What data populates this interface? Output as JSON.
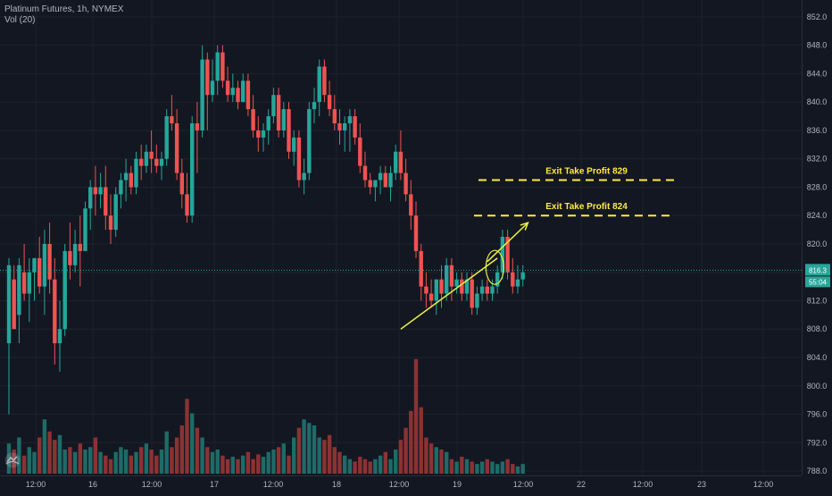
{
  "legend": {
    "symbol": "Platinum Futures, 1h, NYMEX",
    "volume": "Vol (20)"
  },
  "colors": {
    "background": "#131722",
    "grid": "#1e222d",
    "up": "#26a69a",
    "down": "#ef5350",
    "vol_up": "#1e6b67",
    "vol_down": "#8c3233",
    "annotation": "#ffeb3b",
    "arrow": "#eaf13e",
    "axis_text": "#b2b5be",
    "price_line": "#26a69a"
  },
  "chart_data": {
    "type": "candlestick",
    "title": "Platinum Futures, 1h, NYMEX",
    "ylim": [
      786,
      854
    ],
    "y_ticks": [
      "852.0",
      "848.0",
      "844.0",
      "840.0",
      "836.0",
      "832.0",
      "828.0",
      "824.0",
      "820.0",
      "816.0",
      "812.0",
      "808.0",
      "804.0",
      "800.0",
      "796.0",
      "792.0",
      "788.0"
    ],
    "x_ticks": [
      "12:00",
      "16",
      "12:00",
      "17",
      "12:00",
      "18",
      "12:00",
      "19",
      "12:00",
      "22",
      "12:00",
      "23",
      "12:00"
    ],
    "current_price_labels": [
      "816.3",
      "55:04"
    ],
    "current_price": 816.3,
    "candles": [
      [
        806,
        818,
        796,
        817
      ],
      [
        815,
        817,
        808,
        808
      ],
      [
        810,
        818,
        806,
        817
      ],
      [
        816,
        820,
        812,
        813
      ],
      [
        813,
        818,
        809,
        816
      ],
      [
        816,
        818,
        812,
        818
      ],
      [
        818,
        821,
        813,
        814
      ],
      [
        814,
        822,
        810,
        820
      ],
      [
        820,
        823,
        813,
        815
      ],
      [
        815,
        818,
        803,
        806
      ],
      [
        806,
        812,
        802,
        808
      ],
      [
        808,
        820,
        807,
        819
      ],
      [
        819,
        823,
        815,
        817
      ],
      [
        817,
        822,
        816,
        820
      ],
      [
        820,
        824,
        814,
        819
      ],
      [
        819,
        826,
        819,
        825
      ],
      [
        825,
        829,
        822,
        828
      ],
      [
        828,
        831,
        824,
        827
      ],
      [
        827,
        830,
        825,
        828
      ],
      [
        828,
        831,
        822,
        824
      ],
      [
        824,
        827,
        820,
        822
      ],
      [
        822,
        828,
        821,
        827
      ],
      [
        827,
        830,
        825,
        829
      ],
      [
        829,
        832,
        826,
        830
      ],
      [
        830,
        831,
        827,
        828
      ],
      [
        828,
        833,
        827,
        832
      ],
      [
        832,
        834,
        829,
        831
      ],
      [
        831,
        834,
        830,
        833
      ],
      [
        833,
        836,
        830,
        832
      ],
      [
        832,
        834,
        830,
        831
      ],
      [
        831,
        833,
        829,
        832
      ],
      [
        832,
        839,
        831,
        838
      ],
      [
        838,
        841,
        836,
        837
      ],
      [
        837,
        839,
        829,
        830
      ],
      [
        830,
        832,
        825,
        827
      ],
      [
        827,
        830,
        823,
        824
      ],
      [
        824,
        838,
        823,
        837
      ],
      [
        837,
        840,
        830,
        836
      ],
      [
        836,
        848,
        835,
        846
      ],
      [
        846,
        847,
        836,
        841
      ],
      [
        841,
        846,
        840,
        843
      ],
      [
        843,
        848,
        841,
        847
      ],
      [
        847,
        848,
        842,
        843
      ],
      [
        843,
        845,
        840,
        841
      ],
      [
        841,
        844,
        840,
        842
      ],
      [
        842,
        843,
        839,
        840
      ],
      [
        840,
        844,
        840,
        843
      ],
      [
        843,
        844,
        838,
        839
      ],
      [
        839,
        841,
        835,
        836
      ],
      [
        836,
        838,
        833,
        835
      ],
      [
        835,
        837,
        833,
        836
      ],
      [
        836,
        839,
        834,
        838
      ],
      [
        838,
        842,
        837,
        841
      ],
      [
        841,
        842,
        835,
        836
      ],
      [
        836,
        840,
        835,
        839
      ],
      [
        839,
        840,
        832,
        833
      ],
      [
        833,
        836,
        831,
        835
      ],
      [
        835,
        836,
        828,
        829
      ],
      [
        829,
        832,
        827,
        830
      ],
      [
        830,
        840,
        829,
        839
      ],
      [
        839,
        842,
        837,
        840
      ],
      [
        840,
        846,
        838,
        845
      ],
      [
        845,
        846,
        840,
        841
      ],
      [
        841,
        843,
        838,
        839
      ],
      [
        839,
        841,
        836,
        837
      ],
      [
        837,
        839,
        834,
        836
      ],
      [
        836,
        838,
        833,
        837
      ],
      [
        837,
        839,
        833,
        838
      ],
      [
        838,
        839,
        834,
        835
      ],
      [
        835,
        837,
        830,
        831
      ],
      [
        831,
        833,
        828,
        829
      ],
      [
        829,
        830,
        827,
        828
      ],
      [
        828,
        829,
        826,
        829
      ],
      [
        829,
        831,
        827,
        830
      ],
      [
        830,
        831,
        828,
        828
      ],
      [
        828,
        831,
        826,
        830
      ],
      [
        830,
        834,
        829,
        833
      ],
      [
        833,
        836,
        829,
        830
      ],
      [
        830,
        832,
        826,
        827
      ],
      [
        827,
        829,
        822,
        824
      ],
      [
        824,
        826,
        818,
        819
      ],
      [
        819,
        820,
        812,
        814
      ],
      [
        814,
        816,
        811,
        813
      ],
      [
        813,
        815,
        811,
        812
      ],
      [
        812,
        815,
        810,
        815
      ],
      [
        815,
        817,
        811,
        813
      ],
      [
        813,
        818,
        812,
        817
      ],
      [
        817,
        818,
        812,
        814
      ],
      [
        814,
        816,
        813,
        815
      ],
      [
        815,
        816,
        812,
        813
      ],
      [
        813,
        816,
        812,
        815
      ],
      [
        815,
        816,
        810,
        811
      ],
      [
        811,
        814,
        810,
        813
      ],
      [
        813,
        815,
        812,
        814
      ],
      [
        814,
        815,
        812,
        813
      ],
      [
        813,
        815,
        812,
        814
      ],
      [
        814,
        817,
        813,
        816
      ],
      [
        816,
        822,
        815,
        821
      ],
      [
        821,
        822,
        815,
        816
      ],
      [
        816,
        818,
        813,
        814
      ],
      [
        814,
        817,
        813,
        815
      ],
      [
        815,
        817,
        814,
        816
      ]
    ],
    "volume_levels": [
      0.25,
      0.2,
      0.3,
      0.15,
      0.22,
      0.18,
      0.3,
      0.45,
      0.35,
      0.28,
      0.32,
      0.2,
      0.22,
      0.18,
      0.25,
      0.2,
      0.22,
      0.3,
      0.18,
      0.15,
      0.12,
      0.18,
      0.22,
      0.2,
      0.15,
      0.18,
      0.22,
      0.25,
      0.2,
      0.15,
      0.2,
      0.35,
      0.22,
      0.3,
      0.4,
      0.62,
      0.5,
      0.38,
      0.3,
      0.22,
      0.18,
      0.2,
      0.15,
      0.12,
      0.14,
      0.12,
      0.15,
      0.18,
      0.12,
      0.16,
      0.14,
      0.18,
      0.2,
      0.22,
      0.25,
      0.15,
      0.3,
      0.38,
      0.45,
      0.42,
      0.4,
      0.3,
      0.28,
      0.32,
      0.22,
      0.18,
      0.15,
      0.12,
      0.1,
      0.14,
      0.12,
      0.1,
      0.12,
      0.15,
      0.18,
      0.12,
      0.2,
      0.28,
      0.38,
      0.52,
      0.95,
      0.55,
      0.3,
      0.25,
      0.22,
      0.2,
      0.18,
      0.12,
      0.1,
      0.14,
      0.12,
      0.1,
      0.08,
      0.1,
      0.12,
      0.1,
      0.08,
      0.1,
      0.12,
      0.08,
      0.06,
      0.08
    ],
    "annotations": {
      "tp1_label": "Exit Take Profit 829",
      "tp1_price": 829,
      "tp2_label": "Exit Take Profit 824",
      "tp2_price": 824,
      "trend_start": [
        808,
        77
      ],
      "trend_end": [
        818,
        96
      ],
      "arrow_start": [
        817.5,
        94
      ],
      "arrow_end": [
        823,
        102
      ],
      "ellipse_center": [
        816.7,
        95.5
      ]
    }
  }
}
